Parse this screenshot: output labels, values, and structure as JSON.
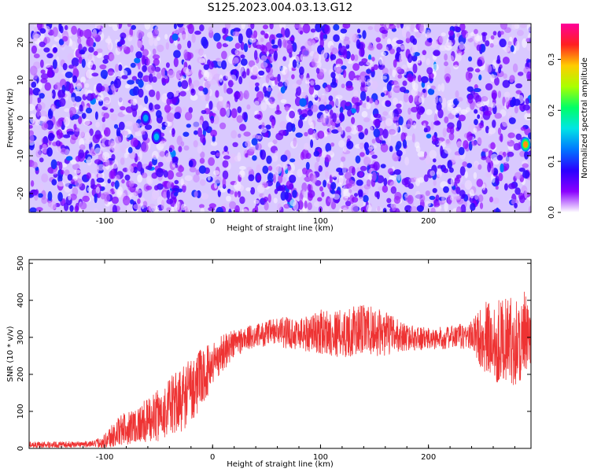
{
  "figure": {
    "title": "S125.2023.004.03.13.G12"
  },
  "chart_data": [
    {
      "type": "heatmap",
      "xlabel": "Height of straight line (km)",
      "ylabel": "Frequency (Hz)",
      "xlim": [
        -170,
        295
      ],
      "ylim": [
        -25,
        25
      ],
      "x_ticks": [
        -100,
        0,
        100,
        200
      ],
      "y_ticks": [
        -20,
        -10,
        0,
        10,
        20
      ],
      "colorbar": {
        "label": "Normalized spectral amplitude",
        "range": [
          0.0,
          0.37
        ],
        "ticks": [
          0.0,
          0.1,
          0.2,
          0.3
        ],
        "colormap": [
          "#ffffff",
          "#8a00ff",
          "#2a00ff",
          "#0077ff",
          "#00e5e5",
          "#00ff66",
          "#aaff00",
          "#ffcc00",
          "#ff2020",
          "#ff0099"
        ]
      },
      "field": {
        "typical_range": [
          0.0,
          0.1
        ],
        "hotspots": [
          {
            "x_km": -62,
            "f_hz": 0,
            "amplitude": 0.14
          },
          {
            "x_km": -52,
            "f_hz": -5,
            "amplitude": 0.15
          },
          {
            "x_km": 290,
            "f_hz": -7,
            "amplitude": 0.3
          }
        ]
      }
    },
    {
      "type": "line",
      "xlabel": "Height of straight line (km)",
      "ylabel": "SNR (10 * v/v)",
      "xlim": [
        -170,
        295
      ],
      "ylim": [
        0,
        510
      ],
      "x_ticks": [
        -100,
        0,
        100,
        200
      ],
      "y_ticks": [
        0,
        100,
        200,
        300,
        400,
        500
      ],
      "series": [
        {
          "color": "#ee3333",
          "x": [
            -170,
            -140,
            -110,
            -100,
            -90,
            -80,
            -70,
            -60,
            -50,
            -40,
            -30,
            -20,
            -10,
            0,
            10,
            20,
            30,
            40,
            60,
            80,
            100,
            120,
            140,
            160,
            180,
            200,
            220,
            240,
            250,
            260,
            270,
            280,
            290,
            295
          ],
          "y": [
            10,
            10,
            12,
            20,
            40,
            55,
            65,
            75,
            90,
            110,
            130,
            160,
            190,
            230,
            260,
            285,
            295,
            305,
            315,
            310,
            315,
            310,
            320,
            310,
            300,
            295,
            300,
            305,
            300,
            290,
            295,
            290,
            295,
            285
          ],
          "noise_amplitude": [
            8,
            8,
            8,
            20,
            40,
            45,
            50,
            60,
            70,
            80,
            90,
            90,
            80,
            60,
            50,
            40,
            35,
            30,
            40,
            45,
            60,
            65,
            70,
            60,
            35,
            30,
            30,
            40,
            90,
            120,
            110,
            120,
            130,
            60
          ]
        }
      ]
    }
  ]
}
